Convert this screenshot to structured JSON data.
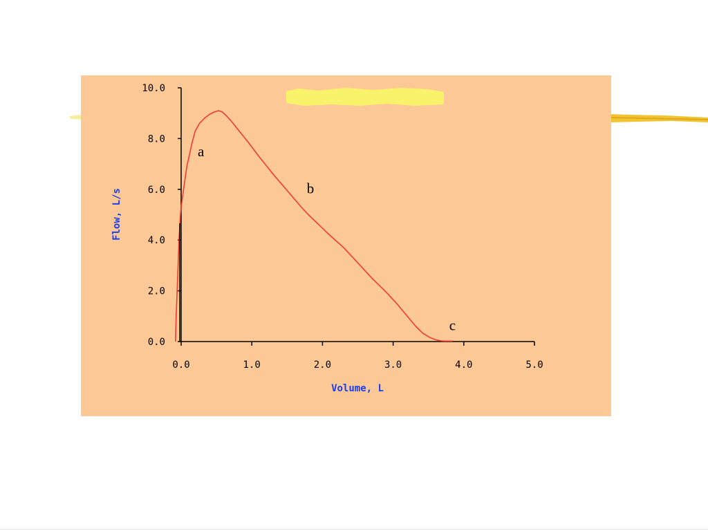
{
  "colors": {
    "background": "#ffffff",
    "panel": "#fcc896",
    "curve": "#f03a32",
    "axis_label": "#1a3ef0",
    "highlight": "#f8f36a",
    "brush": "#f2c530"
  },
  "chart_data": {
    "type": "line",
    "title": "",
    "xlabel": "Volume, L",
    "ylabel": "Flow, L/s",
    "xlim": [
      0,
      5
    ],
    "ylim": [
      0,
      10
    ],
    "xticks": [
      "0.0",
      "1.0",
      "2.0",
      "3.0",
      "4.0",
      "5.0"
    ],
    "yticks": [
      "0.0",
      "2.0",
      "4.0",
      "6.0",
      "8.0",
      "10.0"
    ],
    "grid": false,
    "series": [
      {
        "x": [
          -0.08,
          -0.07,
          -0.05,
          -0.03,
          -0.01,
          0.0,
          0.02,
          0.05,
          0.08,
          0.12,
          0.16,
          0.2,
          0.26,
          0.33,
          0.4,
          0.47,
          0.53,
          0.58,
          0.64,
          0.72,
          0.82,
          0.95,
          1.1,
          1.3,
          1.5,
          1.7,
          1.8,
          1.95,
          2.1,
          2.3,
          2.5,
          2.7,
          2.9,
          3.05,
          3.2,
          3.32,
          3.42,
          3.52,
          3.6,
          3.67,
          3.73,
          3.79,
          3.84
        ],
        "values": [
          0.0,
          1.0,
          2.5,
          4.0,
          5.0,
          5.3,
          5.7,
          6.3,
          6.9,
          7.4,
          7.9,
          8.3,
          8.6,
          8.8,
          8.95,
          9.05,
          9.1,
          9.05,
          8.9,
          8.65,
          8.3,
          7.85,
          7.3,
          6.6,
          5.95,
          5.3,
          5.0,
          4.6,
          4.2,
          3.7,
          3.1,
          2.5,
          1.95,
          1.5,
          1.0,
          0.6,
          0.33,
          0.16,
          0.07,
          0.03,
          0.02,
          0.02,
          0.02
        ]
      }
    ],
    "annotations": [
      {
        "text": "a",
        "x": 0.28,
        "y": 7.3
      },
      {
        "text": "b",
        "x": 1.83,
        "y": 5.85
      },
      {
        "text": "c",
        "x": 3.84,
        "y": 0.45
      }
    ]
  }
}
